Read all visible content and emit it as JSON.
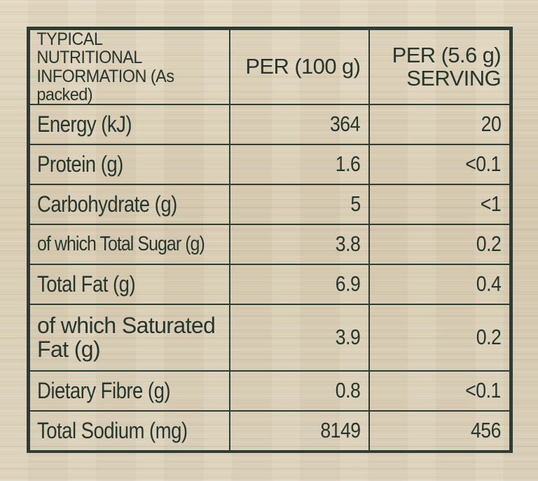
{
  "table": {
    "header": {
      "label": "TYPICAL NUTRITIONAL INFORMATION (As packed)",
      "per_100": "PER (100 g)",
      "per_serving": "PER (5.6 g) SERVING"
    },
    "rows": [
      {
        "label": "Energy (kJ)",
        "per_100": "364",
        "per_serving": "20"
      },
      {
        "label": "Protein (g)",
        "per_100": "1.6",
        "per_serving": "<0.1"
      },
      {
        "label": "Carbohydrate (g)",
        "per_100": "5",
        "per_serving": "<1"
      },
      {
        "label": "of which Total Sugar (g)",
        "per_100": "3.8",
        "per_serving": "0.2"
      },
      {
        "label": "Total Fat (g)",
        "per_100": "6.9",
        "per_serving": "0.4"
      },
      {
        "label": "of which Saturated Fat (g)",
        "per_100": "3.9",
        "per_serving": "0.2"
      },
      {
        "label": "Dietary Fibre (g)",
        "per_100": "0.8",
        "per_serving": "<0.1"
      },
      {
        "label": "Total Sodium (mg)",
        "per_100": "8149",
        "per_serving": "456"
      }
    ]
  },
  "colors": {
    "background": "#dcd0b7",
    "ink": "#27362d",
    "border": "#2d3d32"
  }
}
